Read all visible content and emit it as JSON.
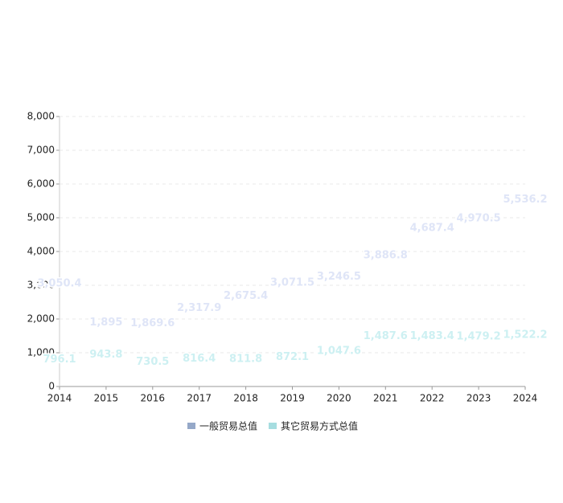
{
  "chart_data": {
    "type": "line",
    "categories": [
      "2014",
      "2015",
      "2016",
      "2017",
      "2018",
      "2019",
      "2020",
      "2021",
      "2022",
      "2023",
      "2024"
    ],
    "series": [
      {
        "name": "一般贸易总值",
        "color": "#95a8c8",
        "label_color": "#dfe5f7",
        "values": [
          3050.4,
          1895,
          1869.6,
          2317.9,
          2675.4,
          3071.5,
          3246.5,
          3886.8,
          4687.4,
          4970.5,
          5536.2
        ],
        "value_labels": [
          "3,050.4",
          "1,895",
          "1,869.6",
          "2,317.9",
          "2,675.4",
          "3,071.5",
          "3,246.5",
          "3,886.8",
          "4,687.4",
          "4,970.5",
          "5,536.2"
        ]
      },
      {
        "name": "其它贸易方式总值",
        "color": "#a6dde0",
        "label_color": "#cdf0f2",
        "values": [
          796.1,
          943.8,
          730.5,
          816.4,
          811.8,
          872.1,
          1047.6,
          1487.6,
          1483.4,
          1479.2,
          1522.2
        ],
        "value_labels": [
          "796.1",
          "943.8",
          "730.5",
          "816.4",
          "811.8",
          "872.1",
          "1,047.6",
          "1,487.6",
          "1,483.4",
          "1,479.2",
          "1,522.2"
        ]
      }
    ],
    "ylim": [
      0,
      8000
    ],
    "yticks": [
      0,
      {
        "value": 1000,
        "label": "1,000"
      },
      {
        "value": 2000,
        "label": "2,000"
      },
      {
        "value": 3000,
        "label": "3,000"
      },
      {
        "value": 4000,
        "label": "4,000"
      },
      {
        "value": 5000,
        "label": "5,000"
      },
      {
        "value": 6000,
        "label": "6,000"
      },
      {
        "value": 7000,
        "label": "7,000"
      },
      {
        "value": 8000,
        "label": "8,000"
      }
    ],
    "grid": true
  }
}
